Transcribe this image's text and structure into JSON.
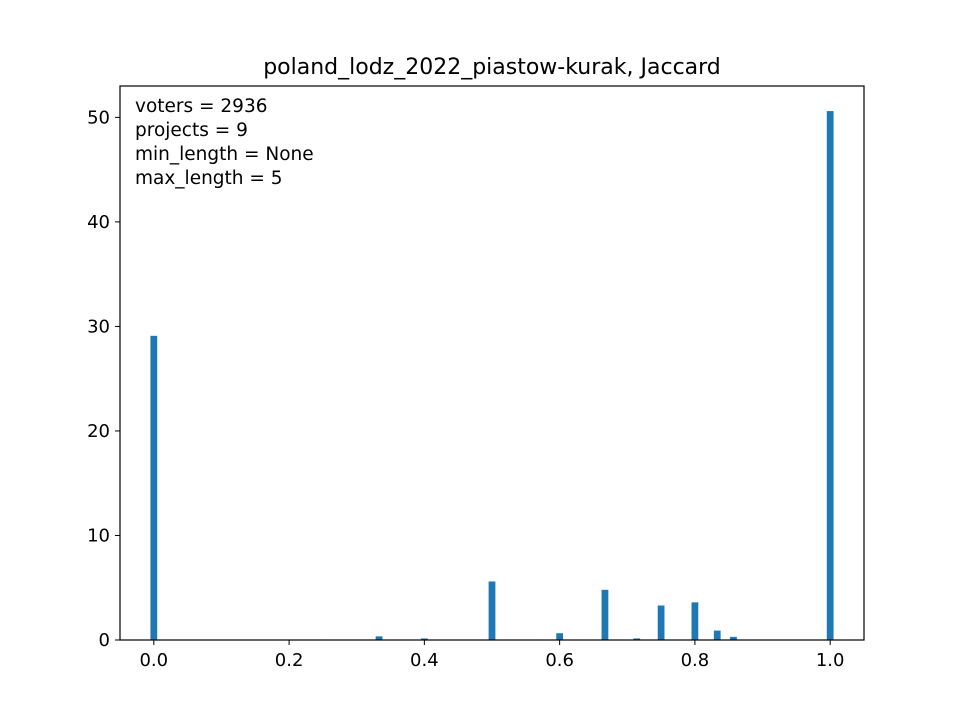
{
  "chart_data": {
    "type": "bar",
    "title": "poland_lodz_2022_piastow-kurak, Jaccard",
    "xlabel": "",
    "ylabel": "",
    "xlim": [
      -0.05,
      1.05
    ],
    "ylim": [
      0,
      53
    ],
    "xticks": [
      0.0,
      0.2,
      0.4,
      0.6,
      0.8,
      1.0
    ],
    "xtick_labels": [
      "0.0",
      "0.2",
      "0.4",
      "0.6",
      "0.8",
      "1.0"
    ],
    "yticks": [
      0,
      10,
      20,
      30,
      40,
      50
    ],
    "ytick_labels": [
      "0",
      "10",
      "20",
      "30",
      "40",
      "50"
    ],
    "bar_width": 0.01,
    "color": "#1f77b4",
    "grid": false,
    "annotations": [
      "voters = 2936",
      "projects = 9",
      "min_length = None",
      "max_length = 5"
    ],
    "x": [
      0.0,
      0.25,
      0.333,
      0.4,
      0.5,
      0.571,
      0.6,
      0.667,
      0.714,
      0.75,
      0.8,
      0.833,
      0.857,
      1.0
    ],
    "values": [
      29.1,
      0.05,
      0.35,
      0.15,
      5.6,
      0.05,
      0.65,
      4.8,
      0.15,
      3.3,
      3.6,
      0.9,
      0.3,
      50.6
    ]
  }
}
